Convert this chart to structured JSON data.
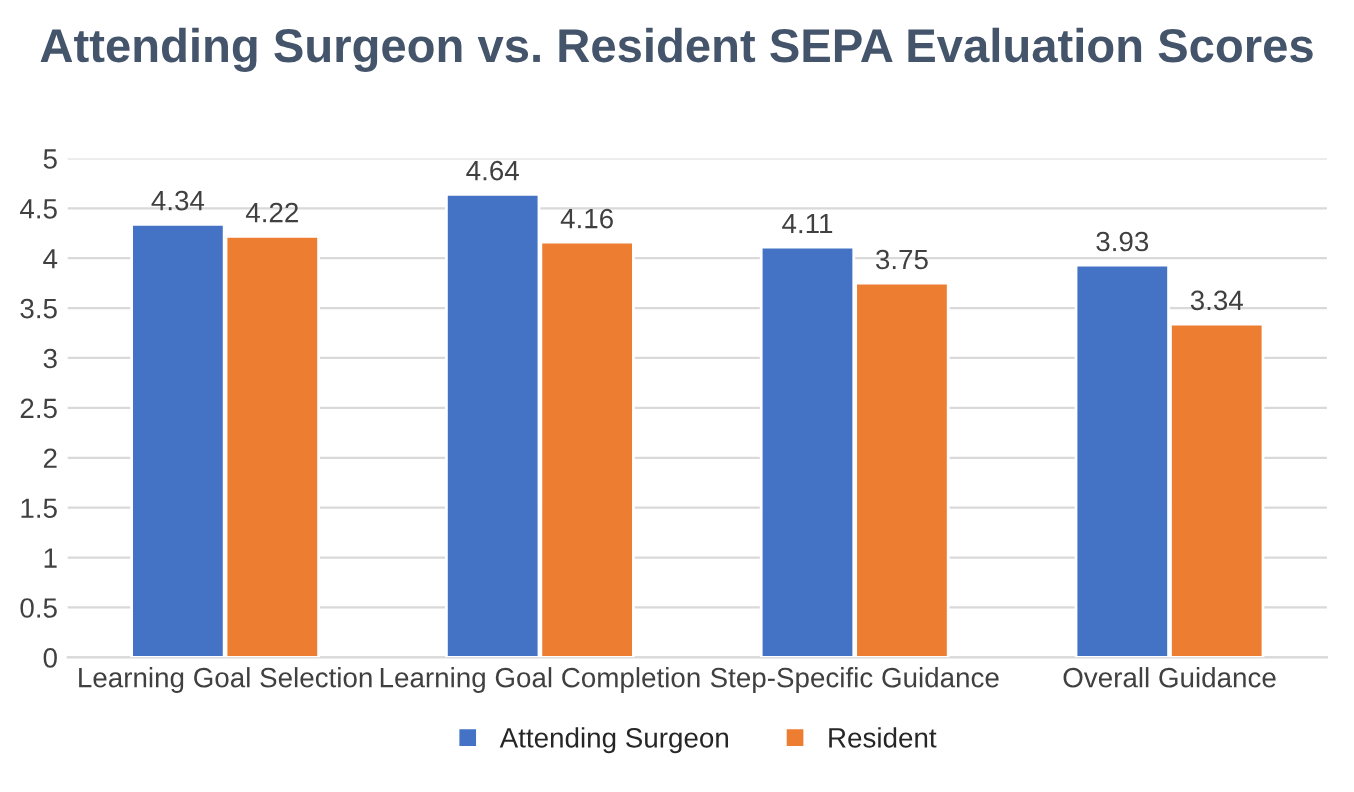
{
  "chart_data": {
    "type": "bar",
    "title": "Attending Surgeon vs. Resident SEPA Evaluation Scores",
    "categories": [
      "Learning Goal Selection",
      "Learning Goal Completion",
      "Step-Specific Guidance",
      "Overall Guidance"
    ],
    "series": [
      {
        "name": "Attending Surgeon",
        "color": "#4472c4",
        "values": [
          4.34,
          4.64,
          4.11,
          3.93
        ]
      },
      {
        "name": "Resident",
        "color": "#ed7d31",
        "values": [
          4.22,
          4.16,
          3.75,
          3.34
        ]
      }
    ],
    "ylim": [
      0,
      5
    ],
    "yticks": [
      0,
      0.5,
      1,
      1.5,
      2,
      2.5,
      3,
      3.5,
      4,
      4.5,
      5
    ],
    "grid": "y",
    "legend": "bottom",
    "data_labels": true
  }
}
